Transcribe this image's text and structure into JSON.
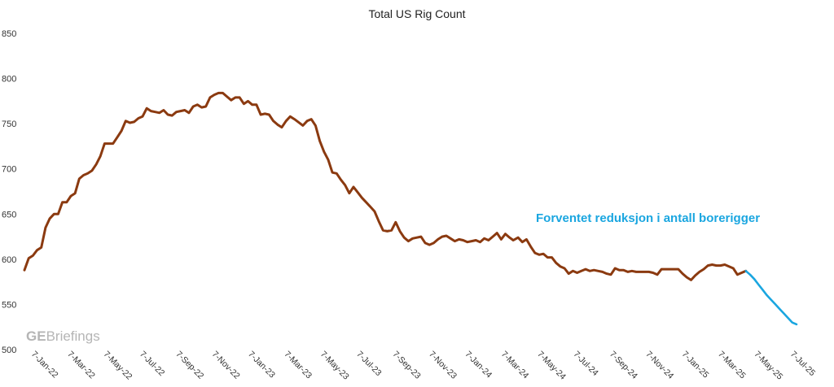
{
  "chart_data": {
    "type": "line",
    "title": "Total US Rig Count",
    "xlabel": "",
    "ylabel": "",
    "ylim": [
      500,
      850
    ],
    "yticks": [
      "850",
      "800",
      "750",
      "700",
      "650",
      "600",
      "550",
      "500"
    ],
    "x_tick_labels": [
      "7-Jan-22",
      "7-Mar-22",
      "7-May-22",
      "7-Jul-22",
      "7-Sep-22",
      "7-Nov-22",
      "7-Jan-23",
      "7-Mar-23",
      "7-May-23",
      "7-Jul-23",
      "7-Sep-23",
      "7-Nov-23",
      "7-Jan-24",
      "7-Mar-24",
      "7-May-24",
      "7-Jul-24",
      "7-Sep-24",
      "7-Nov-24",
      "7-Jan-25",
      "7-Mar-25",
      "7-May-25",
      "7-Jul-25"
    ],
    "grid": false,
    "legend": "none",
    "series": [
      {
        "color": "#8B3A10",
        "x": [
          "2022-01-07",
          "2022-01-14",
          "2022-01-21",
          "2022-01-28",
          "2022-02-04",
          "2022-02-11",
          "2022-02-18",
          "2022-02-25",
          "2022-03-04",
          "2022-03-11",
          "2022-03-18",
          "2022-03-25",
          "2022-04-01",
          "2022-04-08",
          "2022-04-15",
          "2022-04-22",
          "2022-04-29",
          "2022-05-06",
          "2022-05-13",
          "2022-05-20",
          "2022-05-27",
          "2022-06-03",
          "2022-06-10",
          "2022-06-17",
          "2022-06-24",
          "2022-07-01",
          "2022-07-08",
          "2022-07-15",
          "2022-07-22",
          "2022-07-29",
          "2022-08-05",
          "2022-08-12",
          "2022-08-19",
          "2022-08-26",
          "2022-09-02",
          "2022-09-09",
          "2022-09-16",
          "2022-09-23",
          "2022-09-30",
          "2022-10-07",
          "2022-10-14",
          "2022-10-21",
          "2022-10-28",
          "2022-11-04",
          "2022-11-11",
          "2022-11-18",
          "2022-11-25",
          "2022-12-02",
          "2022-12-09",
          "2022-12-16",
          "2022-12-23",
          "2022-12-30",
          "2023-01-06",
          "2023-01-13",
          "2023-01-20",
          "2023-01-27",
          "2023-02-03",
          "2023-02-10",
          "2023-02-17",
          "2023-02-24",
          "2023-03-03",
          "2023-03-10",
          "2023-03-17",
          "2023-03-24",
          "2023-03-31",
          "2023-04-06",
          "2023-04-14",
          "2023-04-21",
          "2023-04-28",
          "2023-05-05",
          "2023-05-12",
          "2023-05-19",
          "2023-05-26",
          "2023-06-02",
          "2023-06-09",
          "2023-06-16",
          "2023-06-23",
          "2023-06-30",
          "2023-07-07",
          "2023-07-14",
          "2023-07-21",
          "2023-07-28",
          "2023-08-04",
          "2023-08-11",
          "2023-08-18",
          "2023-08-25",
          "2023-09-01",
          "2023-09-08",
          "2023-09-15",
          "2023-09-22",
          "2023-09-29",
          "2023-10-06",
          "2023-10-13",
          "2023-10-20",
          "2023-10-27",
          "2023-11-03",
          "2023-11-10",
          "2023-11-17",
          "2023-11-24",
          "2023-12-01",
          "2023-12-08",
          "2023-12-15",
          "2023-12-22",
          "2023-12-29",
          "2024-01-05",
          "2024-01-12",
          "2024-01-19",
          "2024-01-26",
          "2024-02-02",
          "2024-02-09",
          "2024-02-16",
          "2024-02-23",
          "2024-03-01",
          "2024-03-08",
          "2024-03-15",
          "2024-03-22",
          "2024-03-28",
          "2024-04-05",
          "2024-04-12",
          "2024-04-19",
          "2024-04-26",
          "2024-05-03",
          "2024-05-10",
          "2024-05-17",
          "2024-05-24",
          "2024-05-31",
          "2024-06-07",
          "2024-06-14",
          "2024-06-21",
          "2024-06-28",
          "2024-07-05",
          "2024-07-12",
          "2024-07-19",
          "2024-07-26",
          "2024-08-02",
          "2024-08-09",
          "2024-08-16",
          "2024-08-23",
          "2024-08-30",
          "2024-09-06",
          "2024-09-13",
          "2024-09-20",
          "2024-09-27",
          "2024-10-04",
          "2024-10-11",
          "2024-10-18",
          "2024-10-25",
          "2024-11-01",
          "2024-11-08",
          "2024-11-15",
          "2024-11-22",
          "2024-11-29",
          "2024-12-06",
          "2024-12-13",
          "2024-12-20",
          "2024-12-27",
          "2025-01-03",
          "2025-01-10",
          "2025-01-17",
          "2025-01-24",
          "2025-01-31",
          "2025-02-07",
          "2025-02-14",
          "2025-02-21",
          "2025-02-28",
          "2025-03-07",
          "2025-03-14",
          "2025-03-21",
          "2025-03-28",
          "2025-04-04",
          "2025-04-11",
          "2025-04-18"
        ],
        "values": [
          588,
          601,
          604,
          610,
          613,
          635,
          645,
          650,
          650,
          663,
          663,
          670,
          673,
          689,
          693,
          695,
          698,
          705,
          714,
          728,
          728,
          728,
          735,
          742,
          753,
          751,
          752,
          756,
          758,
          767,
          764,
          763,
          762,
          765,
          760,
          759,
          763,
          764,
          765,
          762,
          769,
          771,
          768,
          769,
          779,
          782,
          784,
          784,
          780,
          776,
          779,
          779,
          772,
          775,
          771,
          771,
          760,
          761,
          760,
          753,
          749,
          746,
          753,
          758,
          755,
          752,
          748,
          753,
          755,
          748,
          731,
          719,
          710,
          696,
          695,
          688,
          682,
          673,
          680,
          674,
          668,
          663,
          658,
          653,
          642,
          632,
          631,
          632,
          641,
          631,
          624,
          620,
          623,
          624,
          625,
          618,
          616,
          618,
          622,
          625,
          626,
          623,
          620,
          622,
          621,
          619,
          620,
          621,
          619,
          623,
          621,
          625,
          629,
          622,
          628,
          624,
          621,
          624,
          619,
          622,
          614,
          607,
          605,
          606,
          602,
          602,
          596,
          592,
          590,
          584,
          587,
          585,
          587,
          589,
          587,
          588,
          587,
          586,
          584,
          583,
          590,
          588,
          588,
          586,
          587,
          586,
          586,
          586,
          586,
          585,
          583,
          589,
          589,
          589,
          589,
          589,
          584,
          580,
          577,
          582,
          586,
          589,
          593,
          594,
          593,
          593,
          594,
          592,
          590,
          583,
          585,
          587
        ]
      },
      {
        "color": "#1AA6E0",
        "x": [
          "2025-04-18",
          "2025-04-25",
          "2025-05-02",
          "2025-05-09",
          "2025-05-16",
          "2025-05-23",
          "2025-05-30",
          "2025-06-06",
          "2025-06-13",
          "2025-06-20",
          "2025-06-27",
          "2025-07-04",
          "2025-07-11"
        ],
        "values": [
          587,
          583,
          578,
          572,
          566,
          560,
          555,
          550,
          545,
          540,
          535,
          530,
          528
        ]
      }
    ],
    "annotation": {
      "text": "Forventet reduksjon i antall borerigger",
      "color": "#1AA6E0"
    }
  },
  "watermark": {
    "bold": "GE",
    "regular": "Briefings",
    "color": "#B5B5B5"
  }
}
